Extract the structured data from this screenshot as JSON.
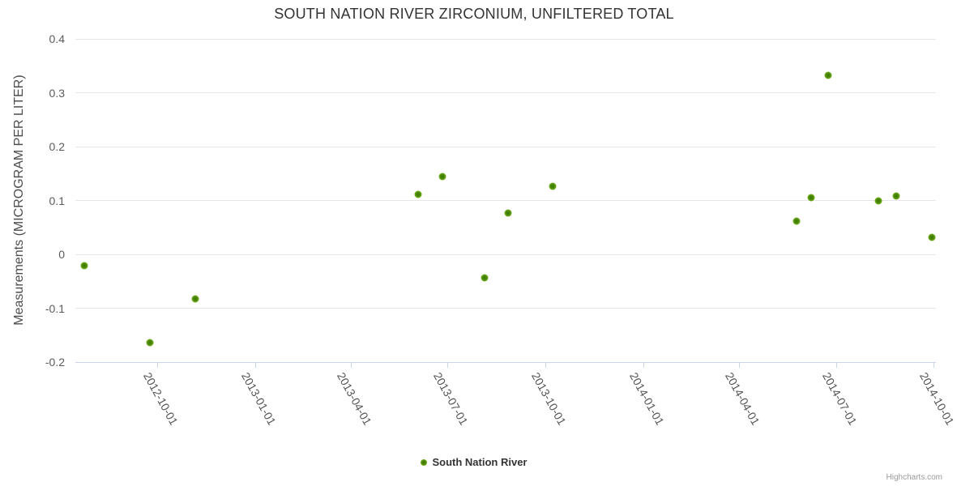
{
  "title": "SOUTH NATION RIVER ZIRCONIUM, UNFILTERED TOTAL",
  "credits_label": "Highcharts.com",
  "legend": {
    "items": [
      {
        "label": "South Nation River",
        "marker_color": "#79b821"
      }
    ]
  },
  "chart_data": {
    "type": "scatter",
    "title": "SOUTH NATION RIVER ZIRCONIUM, UNFILTERED TOTAL",
    "xlabel": "",
    "ylabel": "Measurements (MICROGRAM PER LITER)",
    "grid": true,
    "legend_position": "bottom-center",
    "ylim": [
      -0.2,
      0.4
    ],
    "y_ticks": [
      {
        "value": 0.4,
        "label": "0.4"
      },
      {
        "value": 0.3,
        "label": "0.3"
      },
      {
        "value": 0.2,
        "label": "0.2"
      },
      {
        "value": 0.1,
        "label": "0.1"
      },
      {
        "value": 0,
        "label": "0"
      },
      {
        "value": -0.1,
        "label": "-0.1"
      },
      {
        "value": -0.2,
        "label": "-0.2"
      }
    ],
    "x_range": [
      "2012-07-16",
      "2014-10-03"
    ],
    "x_ticks": [
      "2012-10-01",
      "2013-01-01",
      "2013-04-01",
      "2013-07-01",
      "2013-10-01",
      "2014-01-01",
      "2014-04-01",
      "2014-07-01",
      "2014-10-01"
    ],
    "series": [
      {
        "name": "South Nation River",
        "marker_color": "#79b821",
        "marker_center_color": "#3a7401",
        "points": [
          {
            "date": "2012-07-24",
            "value": -0.021
          },
          {
            "date": "2012-09-24",
            "value": -0.164
          },
          {
            "date": "2012-11-06",
            "value": -0.083
          },
          {
            "date": "2013-06-03",
            "value": 0.111
          },
          {
            "date": "2013-06-26",
            "value": 0.144
          },
          {
            "date": "2013-08-05",
            "value": -0.044
          },
          {
            "date": "2013-08-27",
            "value": 0.077
          },
          {
            "date": "2013-10-08",
            "value": 0.126
          },
          {
            "date": "2014-05-25",
            "value": 0.062
          },
          {
            "date": "2014-06-08",
            "value": 0.105
          },
          {
            "date": "2014-06-24",
            "value": 0.333
          },
          {
            "date": "2014-08-10",
            "value": 0.1
          },
          {
            "date": "2014-08-27",
            "value": 0.108
          },
          {
            "date": "2014-09-29",
            "value": 0.031
          }
        ]
      }
    ]
  }
}
